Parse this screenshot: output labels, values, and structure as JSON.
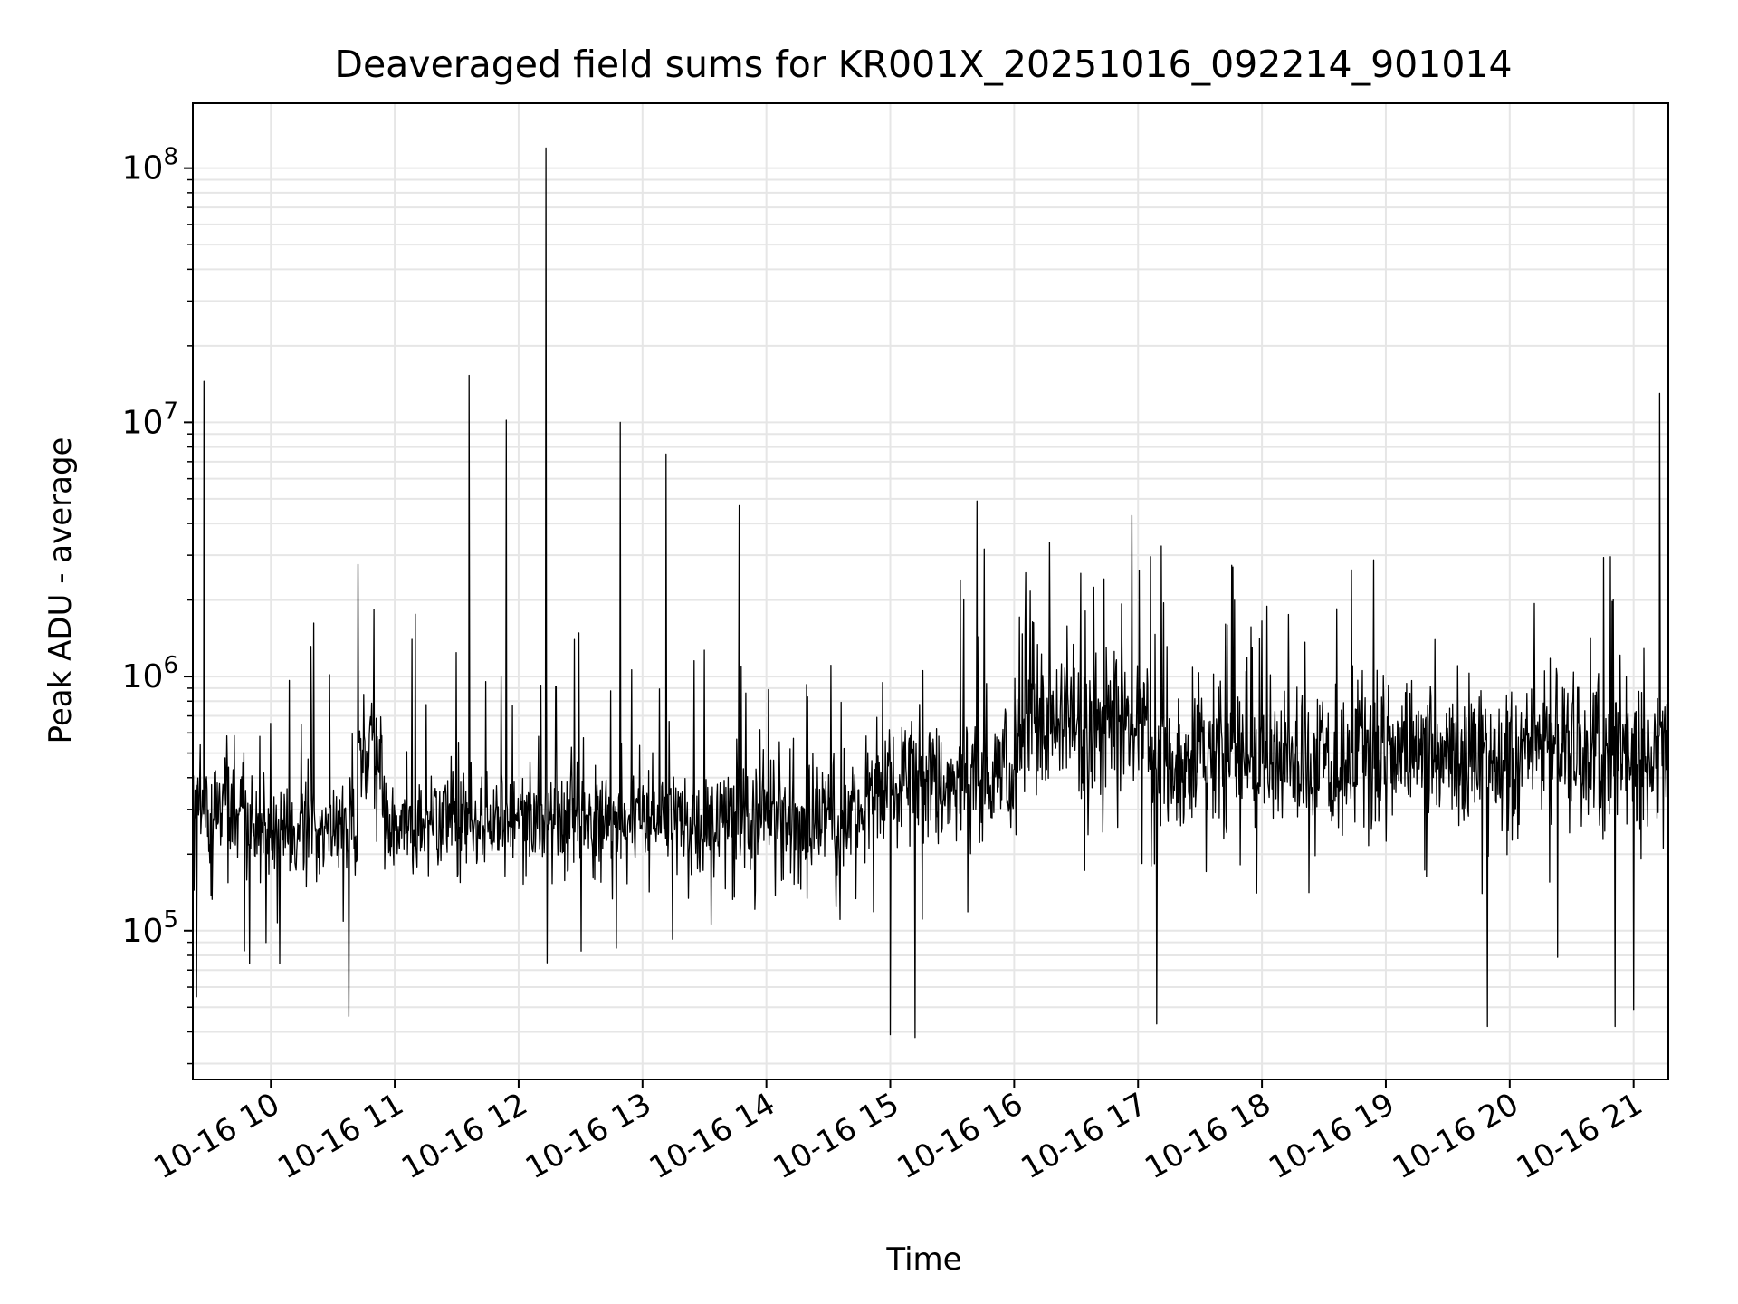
{
  "chart_data": {
    "type": "line",
    "title": "Deaveraged field sums for KR001X_20251016_092214_901014",
    "xlabel": "Time",
    "ylabel": "Peak ADU - average",
    "yscale": "log",
    "ylim": [
      26000,
      180000000
    ],
    "xlim_hours": [
      9.37,
      21.28
    ],
    "grid": true,
    "x_tick_hours": [
      10,
      11,
      12,
      13,
      14,
      15,
      16,
      17,
      18,
      19,
      20,
      21
    ],
    "x_tick_labels": [
      "10-16 10",
      "10-16 11",
      "10-16 12",
      "10-16 13",
      "10-16 14",
      "10-16 15",
      "10-16 16",
      "10-16 17",
      "10-16 18",
      "10-16 19",
      "10-16 20",
      "10-16 21"
    ],
    "y_tick_labels": [
      {
        "base": "10",
        "exp": "5",
        "value": 100000
      },
      {
        "base": "10",
        "exp": "6",
        "value": 1000000
      },
      {
        "base": "10",
        "exp": "7",
        "value": 10000000
      },
      {
        "base": "10",
        "exp": "8",
        "value": 100000000
      }
    ],
    "series": [
      {
        "name": "field sums",
        "color": "#000000",
        "baseline_segments": [
          {
            "start_hour": 9.37,
            "end_hour": 9.8,
            "median": 300000,
            "spread_decades": 0.35
          },
          {
            "start_hour": 9.8,
            "end_hour": 10.7,
            "median": 250000,
            "spread_decades": 0.3
          },
          {
            "start_hour": 10.7,
            "end_hour": 10.9,
            "median": 500000,
            "spread_decades": 0.35
          },
          {
            "start_hour": 10.9,
            "end_hour": 13.7,
            "median": 270000,
            "spread_decades": 0.3
          },
          {
            "start_hour": 13.7,
            "end_hour": 14.8,
            "median": 280000,
            "spread_decades": 0.35
          },
          {
            "start_hour": 14.8,
            "end_hour": 16.0,
            "median": 400000,
            "spread_decades": 0.4
          },
          {
            "start_hour": 16.0,
            "end_hour": 17.1,
            "median": 650000,
            "spread_decades": 0.45
          },
          {
            "start_hour": 17.1,
            "end_hour": 18.6,
            "median": 450000,
            "spread_decades": 0.45
          },
          {
            "start_hour": 18.6,
            "end_hour": 21.28,
            "median": 500000,
            "spread_decades": 0.45
          }
        ],
        "spikes": [
          {
            "hour": 9.46,
            "value": 14500000
          },
          {
            "hour": 11.6,
            "value": 15300000
          },
          {
            "hour": 11.9,
            "value": 10200000
          },
          {
            "hour": 12.22,
            "value": 120000000
          },
          {
            "hour": 12.82,
            "value": 10000000
          },
          {
            "hour": 13.19,
            "value": 7500000
          },
          {
            "hour": 13.78,
            "value": 4700000
          },
          {
            "hour": 15.7,
            "value": 4900000
          },
          {
            "hour": 16.95,
            "value": 4300000
          },
          {
            "hour": 21.21,
            "value": 13000000
          }
        ],
        "dips": [
          {
            "hour": 9.4,
            "value": 55000
          },
          {
            "hour": 10.63,
            "value": 46000
          },
          {
            "hour": 15.0,
            "value": 39000
          },
          {
            "hour": 15.2,
            "value": 38000
          },
          {
            "hour": 17.15,
            "value": 43000
          },
          {
            "hour": 19.82,
            "value": 42000
          },
          {
            "hour": 20.85,
            "value": 42000
          },
          {
            "hour": 21.0,
            "value": 49000
          }
        ]
      }
    ]
  }
}
